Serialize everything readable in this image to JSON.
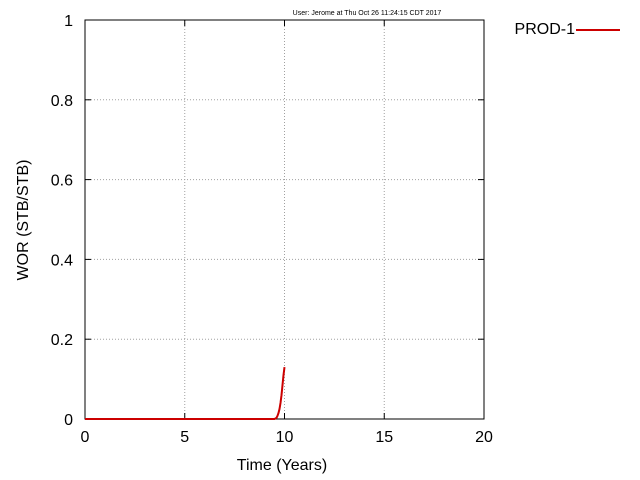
{
  "chart_data": {
    "type": "line",
    "stamp": "User: Jerome at Thu Oct 26 11:24:15 CDT 2017",
    "xlabel": "Time (Years)",
    "ylabel": "WOR (STB/STB)",
    "xlim": [
      0,
      20
    ],
    "ylim": [
      0,
      1
    ],
    "grid": true,
    "legend_position": "top-right outside",
    "x_ticks": [
      0,
      5,
      10,
      15,
      20
    ],
    "x_tick_labels": [
      "0",
      "5",
      "10",
      "15",
      "20"
    ],
    "y_ticks": [
      0,
      0.2,
      0.4,
      0.6,
      0.8,
      1
    ],
    "y_tick_labels": [
      "0",
      "0.2",
      "0.4",
      "0.6",
      "0.8",
      "1"
    ],
    "series": [
      {
        "name": "PROD-1",
        "color": "#cc0000",
        "x": [
          0,
          2,
          4,
          6,
          8,
          9.0,
          9.5,
          9.6,
          9.65,
          9.7,
          9.75,
          9.8,
          9.85,
          9.9,
          9.95,
          10.0
        ],
        "y": [
          0,
          0,
          0,
          0,
          0,
          0,
          0,
          0.003,
          0.008,
          0.015,
          0.025,
          0.04,
          0.06,
          0.085,
          0.11,
          0.13
        ]
      }
    ]
  }
}
